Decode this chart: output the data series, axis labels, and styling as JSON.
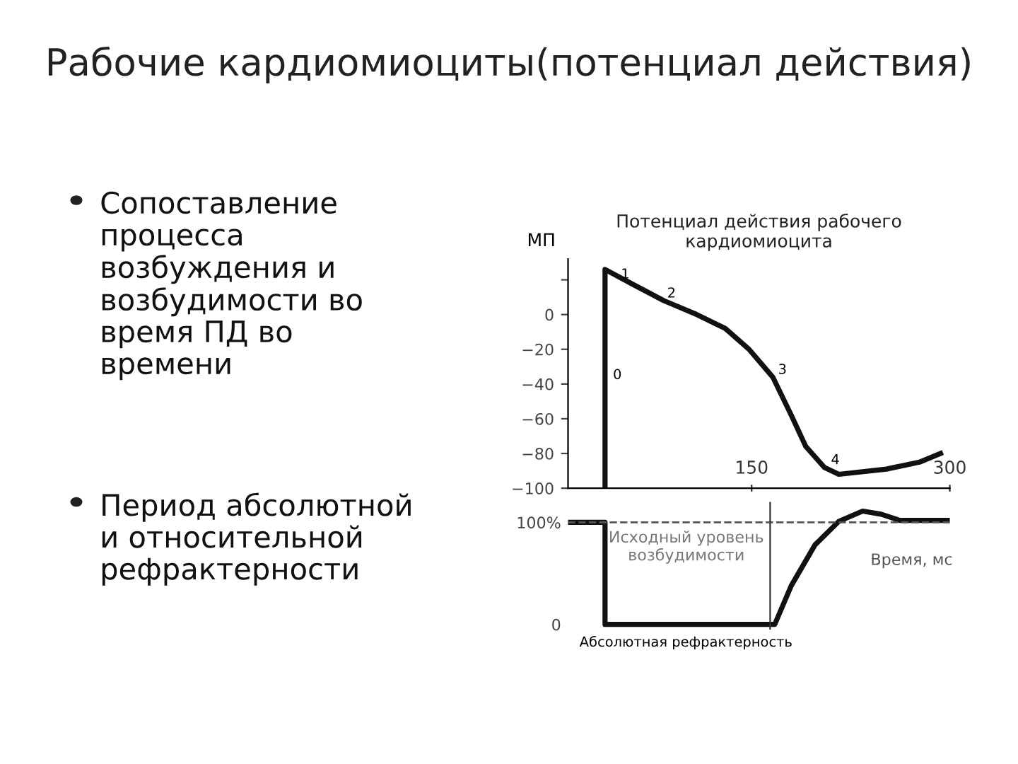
{
  "chart_data": [
    {
      "type": "other",
      "title": "Рабочие кардиомиоциты(потенциал действия)",
      "annotations": [
        "Сопоставление\nпроцесса\nвозбуждения и\nвозбудимости во\nвремя ПД во\nвремени",
        "Период абсолютной\nи относительной\nрефрактерности"
      ]
    },
    {
      "type": "line",
      "title": "Потенциал действия рабочего\nкардиомиоцита",
      "ylabel": "МП",
      "series": [
        {
          "color": "#111111",
          "x": [
            39,
            39,
            58.6,
            83.5,
            108.5,
            130,
            148,
            166,
            180,
            191,
            205,
            216,
            252,
            277,
            293
          ],
          "values": [
            -100,
            26,
            18,
            8,
            0,
            -8,
            -20,
            -36,
            -58,
            -76,
            -88,
            -92,
            -89,
            -85,
            -80
          ]
        }
      ],
      "xlim": [
        11,
        300
      ],
      "xticks": [
        150,
        300
      ],
      "ylim": [
        -100,
        32
      ],
      "yticks": [
        {
          "value": 20,
          "label": null
        },
        0,
        {
          "value": -20,
          "label": "−20"
        },
        {
          "value": -40,
          "label": "−40"
        },
        {
          "value": -60,
          "label": "−60"
        },
        {
          "value": -80,
          "label": "−80"
        },
        {
          "value": -100,
          "label": "−100"
        }
      ],
      "annotations": [
        {
          "text": "0",
          "x": 45,
          "y": -35
        },
        {
          "text": "1",
          "x": 51,
          "y": 23
        },
        {
          "text": "2",
          "x": 86,
          "y": 12
        },
        {
          "text": "3",
          "x": 170,
          "y": -32
        },
        {
          "text": "4",
          "x": 210,
          "y": -84
        }
      ],
      "grid": false,
      "legend": false
    },
    {
      "type": "line",
      "xlabel": "Время, мс",
      "series": [
        {
          "color": "#111111",
          "x": [
            11,
            39,
            39,
            167.5,
            180,
            198,
            216,
            234,
            248,
            262,
            300
          ],
          "values": [
            100,
            100,
            0,
            0,
            38,
            78,
            101,
            111,
            108,
            102,
            102
          ]
        }
      ],
      "xlim": [
        11,
        300
      ],
      "ylim": [
        -5,
        120
      ],
      "yticks": [
        0,
        {
          "value": 100,
          "label": "100%"
        }
      ],
      "ref_lines": [
        {
          "axis": "y",
          "value": 100,
          "label": "Исходный уровень\nвозбудимости",
          "line_style": "dashed",
          "color": "#555555"
        },
        {
          "axis": "x",
          "value": 164,
          "color": "#333333"
        }
      ],
      "annotations": [
        "Абсолютная рефрактерность"
      ],
      "tick_labels": "y",
      "grid": false,
      "legend": false
    }
  ]
}
